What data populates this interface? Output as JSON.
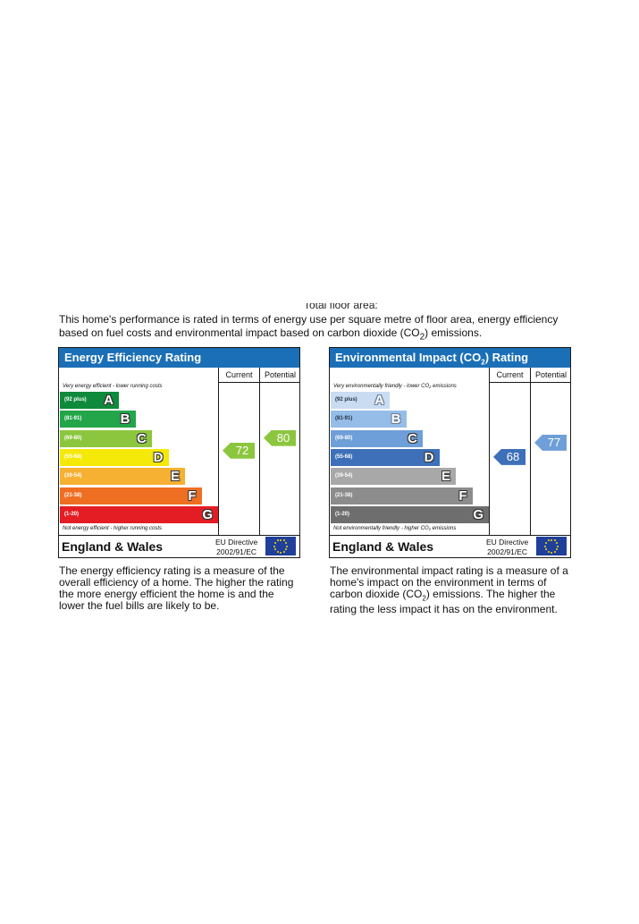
{
  "cut_off_text": "Total floor area:",
  "intro": {
    "line1": "This home's performance is rated in terms of energy use per square metre of floor area, energy efficiency",
    "line2_before": "based on fuel costs and environmental impact based on carbon dioxide (CO",
    "line2_sub": "2",
    "line2_after": ") emissions."
  },
  "energy_chart": {
    "title": "Energy Efficiency Rating",
    "col_current": "Current",
    "col_potential": "Potential",
    "note_top": "Very energy efficient - lower running costs",
    "note_bottom": "Not energy efficient - higher running costs",
    "bands": [
      {
        "range": "(92 plus)",
        "letter": "A",
        "color": "#0f8a3c"
      },
      {
        "range": "(81-91)",
        "letter": "B",
        "color": "#23a54a"
      },
      {
        "range": "(69-80)",
        "letter": "C",
        "color": "#8cc63e"
      },
      {
        "range": "(55-68)",
        "letter": "D",
        "color": "#f5e90a"
      },
      {
        "range": "(39-54)",
        "letter": "E",
        "color": "#f6b032"
      },
      {
        "range": "(21-38)",
        "letter": "F",
        "color": "#ef6f22"
      },
      {
        "range": "(1-20)",
        "letter": "G",
        "color": "#e31d23"
      }
    ],
    "current": {
      "value": "72",
      "color": "#8cc63e"
    },
    "potential": {
      "value": "80",
      "color": "#8cc63e"
    },
    "region": "England & Wales",
    "directive_line1": "EU Directive",
    "directive_line2": "2002/91/EC"
  },
  "impact_chart": {
    "title_before": "Environmental Impact (CO",
    "title_sub": "2",
    "title_after": ") Rating",
    "col_current": "Current",
    "col_potential": "Potential",
    "note_top": "Very environmentally friendly - lower CO₂ emissions",
    "note_bottom": "Not environmentally friendly - higher CO₂ emissions",
    "bands": [
      {
        "range": "(92 plus)",
        "letter": "A",
        "color": "#c9dcf2"
      },
      {
        "range": "(81-91)",
        "letter": "B",
        "color": "#96bde8"
      },
      {
        "range": "(69-80)",
        "letter": "C",
        "color": "#6f9fd8"
      },
      {
        "range": "(55-68)",
        "letter": "D",
        "color": "#3d70b8"
      },
      {
        "range": "(39-54)",
        "letter": "E",
        "color": "#a8a8a8"
      },
      {
        "range": "(21-38)",
        "letter": "F",
        "color": "#8c8c8c"
      },
      {
        "range": "(1-20)",
        "letter": "G",
        "color": "#6e6e6e"
      }
    ],
    "current": {
      "value": "68",
      "color": "#3d70b8"
    },
    "potential": {
      "value": "77",
      "color": "#6f9fd8"
    },
    "region": "England & Wales",
    "directive_line1": "EU Directive",
    "directive_line2": "2002/91/EC"
  },
  "desc_energy": "The energy efficiency rating is a measure of the overall efficiency of a home. The higher the rating the more energy efficient the home is and the lower the fuel bills are likely to be.",
  "desc_impact": {
    "before": "The environmental impact rating is a measure of a home's impact on the environment in terms of carbon dioxide (CO",
    "sub": "2",
    "after": ") emissions. The higher the rating the less impact it has on the environment."
  }
}
